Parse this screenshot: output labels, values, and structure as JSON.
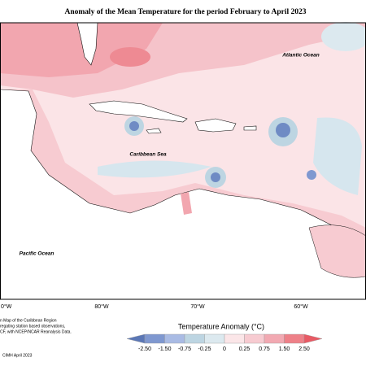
{
  "title": "Anomaly of the Mean Temperature for the period February to April 2023",
  "ocean_labels": [
    "Atlantic Ocean",
    "Caribbean Sea",
    "Pacific Ocean"
  ],
  "longitudes": [
    "0°W",
    "80°W",
    "70°W",
    "60°W"
  ],
  "legend": {
    "title": "Temperature Anomaly (°C)",
    "ticks": [
      "-2.50",
      "-1.50",
      "-0.75",
      "-0.25",
      "0",
      "0.25",
      "0.75",
      "1.50",
      "2.50"
    ],
    "colors": [
      "#5b77b6",
      "#7f98d0",
      "#a9bbe4",
      "#bdd5e2",
      "#dce9ef",
      "#fbe6e8",
      "#f7cbd1",
      "#f2a9b2",
      "#ee8088",
      "#e85a64"
    ]
  },
  "notes": [
    "n Map of the Caribbean Region",
    "regating station based observations,",
    "CF, with NCEP/NCAR Reanalysis Data.",
    "CIMH April 2023"
  ]
}
